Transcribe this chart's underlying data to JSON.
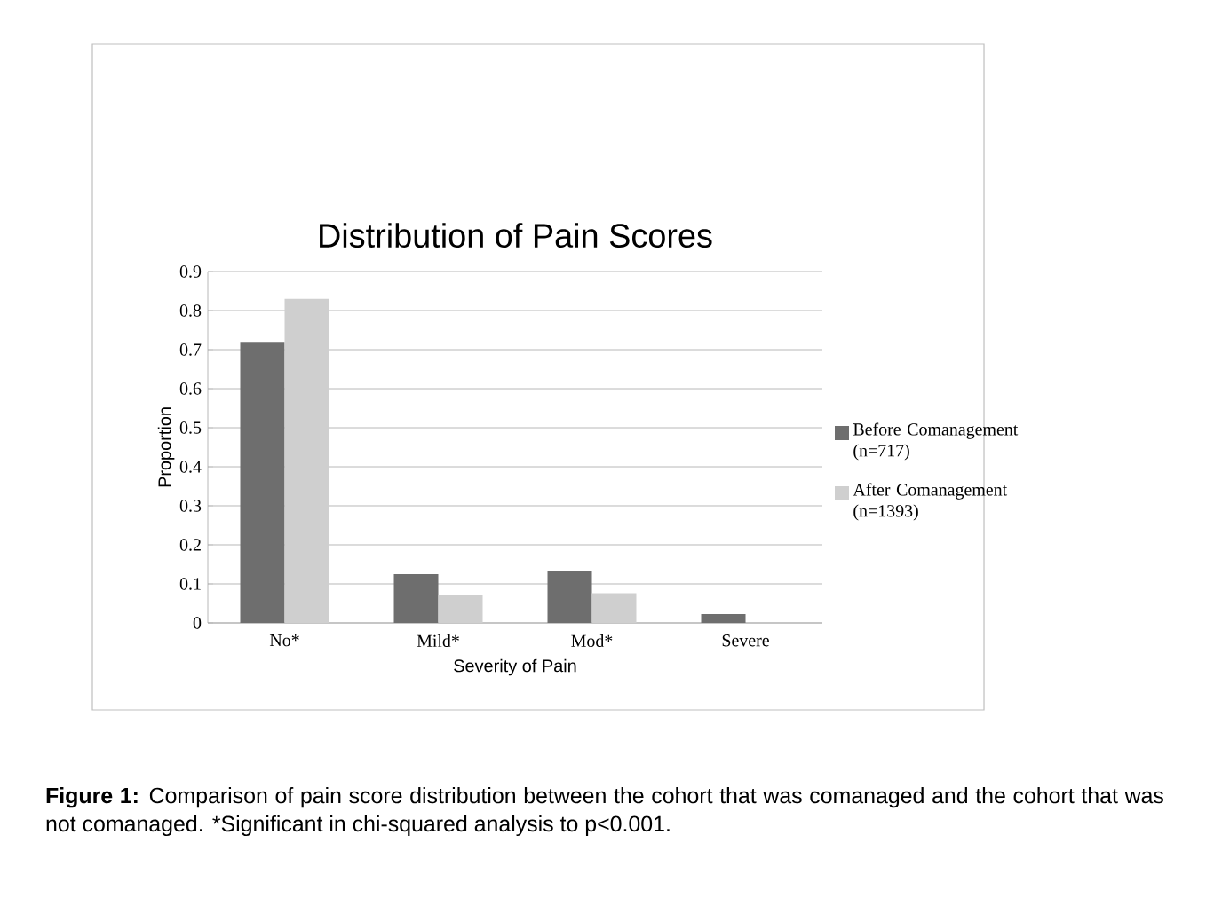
{
  "chart_data": {
    "type": "bar",
    "title": "Distribution of Pain Scores",
    "xlabel": "Severity of Pain",
    "ylabel": "Proportion",
    "categories": [
      "No*",
      "Mild*",
      "Mod*",
      "Severe"
    ],
    "series": [
      {
        "name": "Before Comanagement (n=717)",
        "color": "#6e6e6e",
        "values": [
          0.72,
          0.125,
          0.132,
          0.023
        ]
      },
      {
        "name": "After Comanagement (n=1393)",
        "color": "#cfcfcf",
        "values": [
          0.83,
          0.073,
          0.076,
          null
        ]
      }
    ],
    "ylim": [
      0,
      0.9
    ],
    "yticks": [
      0,
      0.1,
      0.2,
      0.3,
      0.4,
      0.5,
      0.6,
      0.7,
      0.8,
      0.9
    ],
    "grid": "y",
    "legend": "right",
    "annotations": [
      "**Figure 1:** Comparison of pain score distribution between the cohort that was comanaged and the cohort that was not comanaged.  *Significant in chi-squared analysis to p<0.001."
    ]
  }
}
